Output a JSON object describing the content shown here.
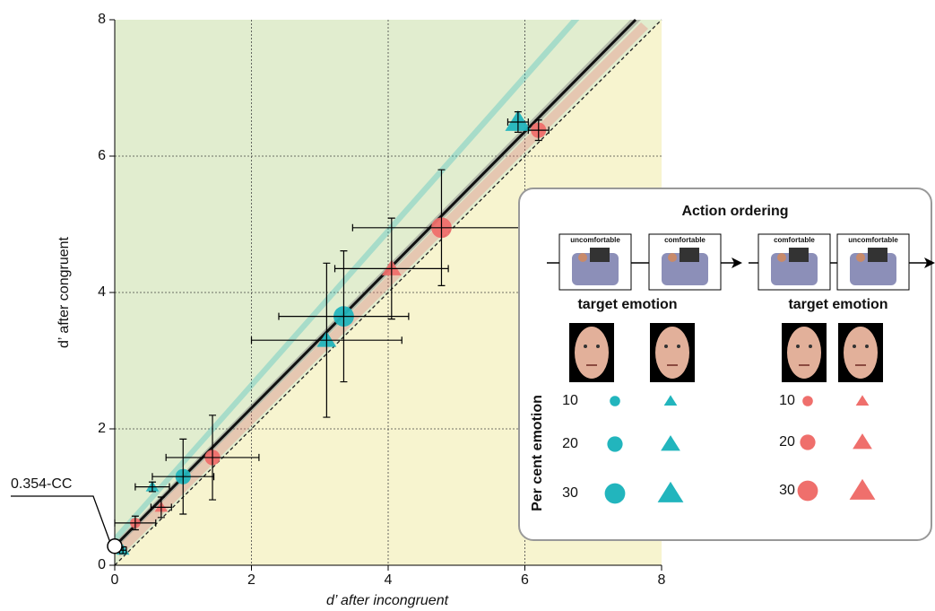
{
  "chart_data": {
    "type": "scatter",
    "xlabel": "d’ after incongruent",
    "ylabel": "d’ after congruent",
    "xlim": [
      0,
      8
    ],
    "ylim": [
      0,
      8
    ],
    "xticks": [
      0,
      2,
      4,
      6,
      8
    ],
    "yticks": [
      0,
      2,
      4,
      6,
      8
    ],
    "grid": true,
    "annotation": "0.354-CC",
    "fit_line": {
      "x": [
        0,
        7.62
      ],
      "y": [
        0.28,
        8
      ]
    },
    "series": [
      {
        "marker": "circle",
        "color": "#22b5bd",
        "x": [
          3.35,
          1.0
        ],
        "y": [
          3.65,
          1.3
        ],
        "xerr": [
          0.95,
          0.45
        ],
        "yerr": [
          0.96,
          0.55
        ],
        "size": [
          30,
          20
        ]
      },
      {
        "marker": "triangle",
        "color": "#22b5bd",
        "x": [
          5.9,
          3.1,
          0.55,
          0.12
        ],
        "y": [
          6.5,
          3.3,
          1.15,
          0.22
        ],
        "xerr": [
          0.15,
          1.1,
          0.25,
          0.05
        ],
        "yerr": [
          0.15,
          1.13,
          0.07,
          0.05
        ],
        "size": [
          30,
          20,
          10,
          10
        ]
      },
      {
        "marker": "circle",
        "color": "#ef6f6c",
        "x": [
          6.2,
          4.78,
          1.43,
          0.3
        ],
        "y": [
          6.38,
          4.95,
          1.58,
          0.62
        ],
        "xerr": [
          0.15,
          1.3,
          0.68,
          0.3
        ],
        "yerr": [
          0.15,
          0.85,
          0.62,
          0.1
        ],
        "size": [
          20,
          30,
          20,
          10
        ]
      },
      {
        "marker": "triangle",
        "color": "#ef6f6c",
        "x": [
          4.05,
          0.68
        ],
        "y": [
          4.35,
          0.85
        ],
        "xerr": [
          0.83,
          0.15
        ],
        "yerr": [
          0.74,
          0.15
        ],
        "size": [
          20,
          10
        ]
      }
    ],
    "inset": {
      "title": "Action ordering",
      "orders": [
        {
          "frames": [
            "uncomfortable",
            "comfortable"
          ],
          "label": "target emotion",
          "color": "#22b5bd"
        },
        {
          "frames": [
            "comfortable",
            "uncomfortable"
          ],
          "label": "target emotion",
          "color": "#ef6f6c"
        }
      ],
      "size_title": "Per cent emotion",
      "sizes": [
        10,
        20,
        30
      ]
    }
  }
}
